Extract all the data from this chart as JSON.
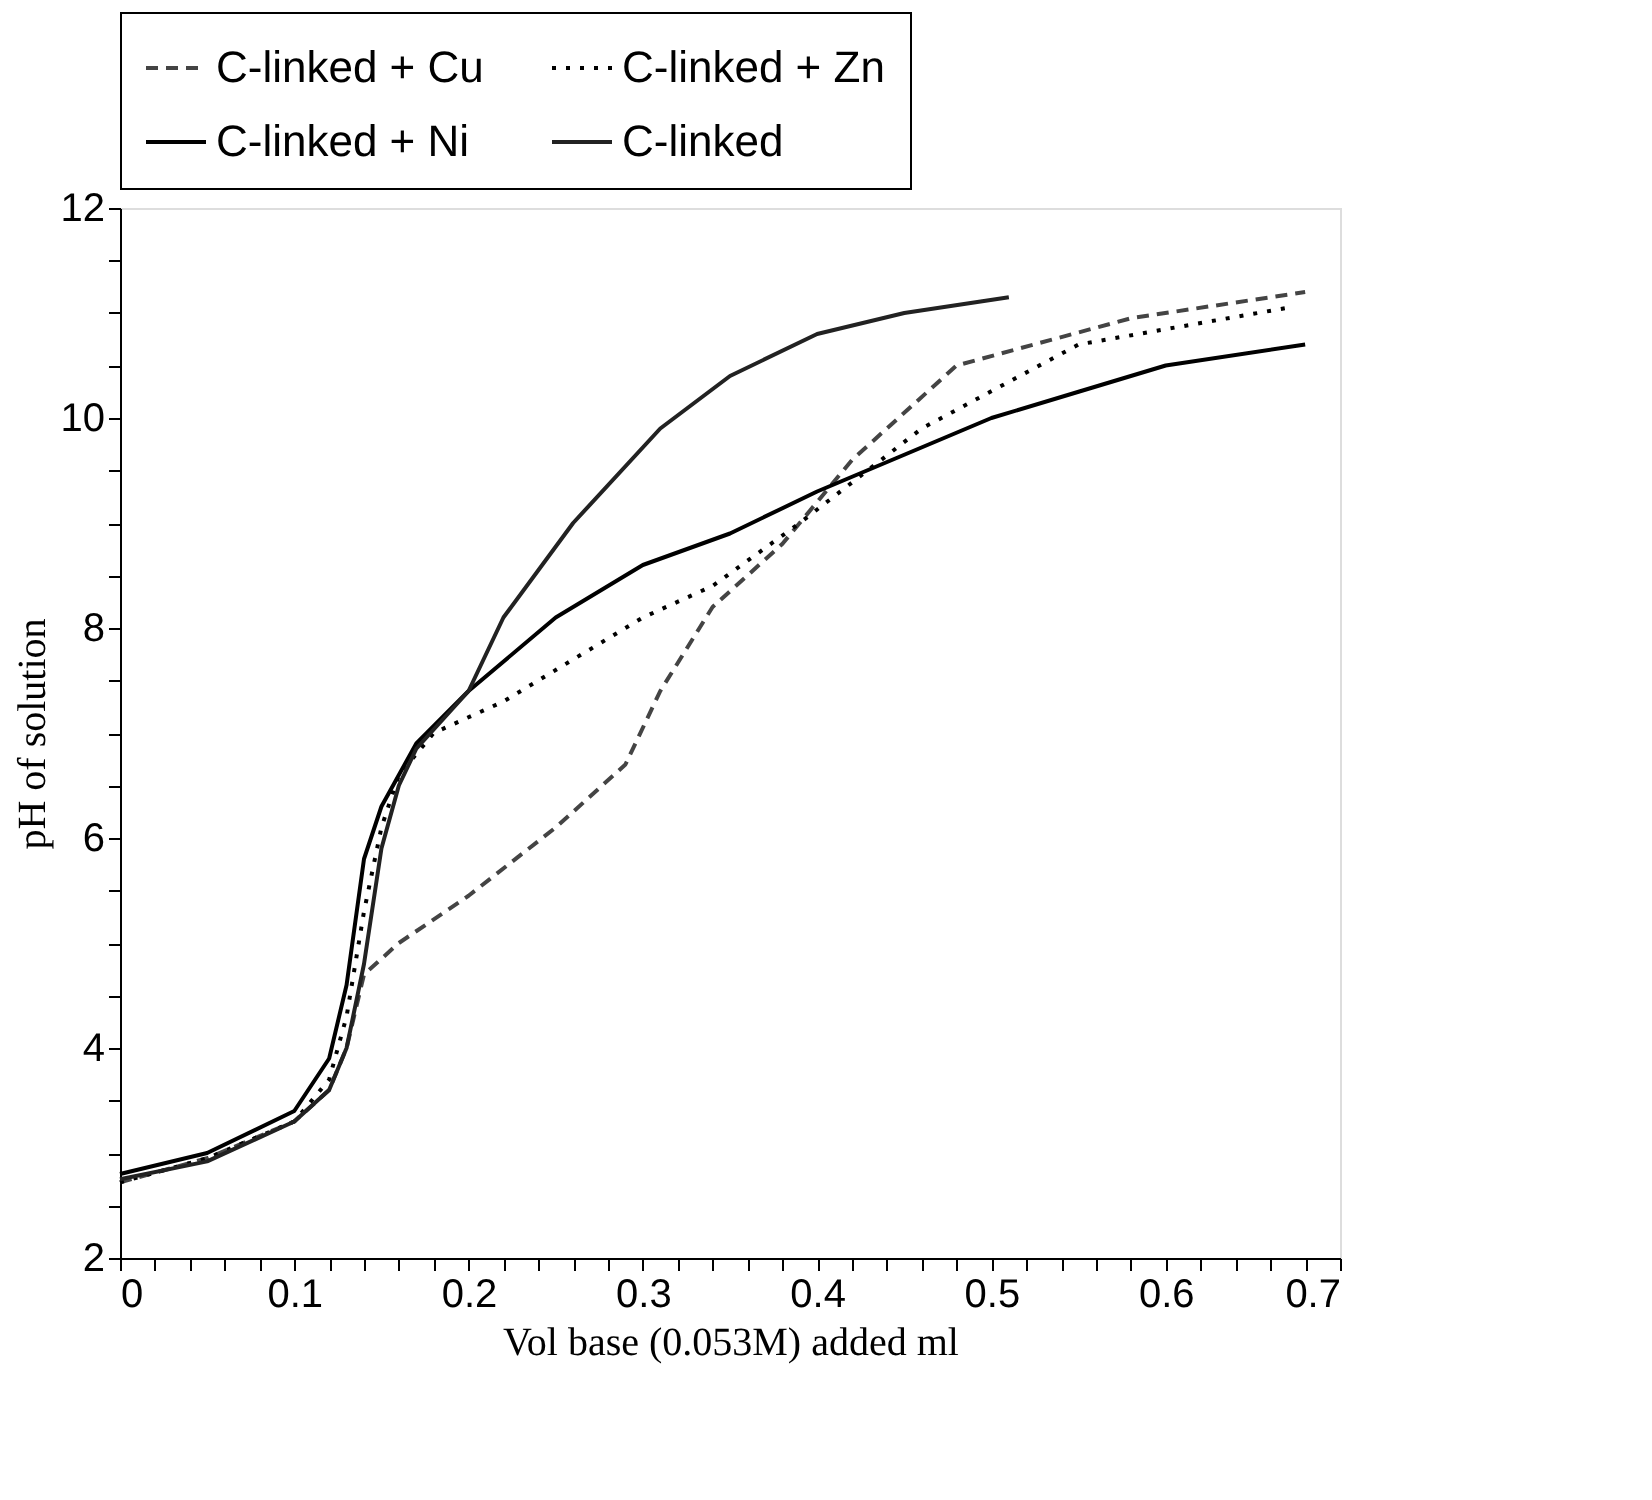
{
  "chart_data": {
    "type": "line",
    "xlabel": "Vol base (0.053M) added ml",
    "ylabel": "pH of solution",
    "xlim": [
      0,
      0.7
    ],
    "ylim": [
      2,
      12
    ],
    "xticks": [
      0,
      {
        "value": 0.02,
        "label": null
      },
      {
        "value": 0.04,
        "label": null
      },
      {
        "value": 0.06,
        "label": null
      },
      {
        "value": 0.08,
        "label": null
      },
      0.1,
      {
        "value": 0.12,
        "label": null
      },
      {
        "value": 0.14,
        "label": null
      },
      {
        "value": 0.16,
        "label": null
      },
      {
        "value": 0.18,
        "label": null
      },
      0.2,
      {
        "value": 0.22,
        "label": null
      },
      {
        "value": 0.24,
        "label": null
      },
      {
        "value": 0.26,
        "label": null
      },
      {
        "value": 0.28,
        "label": null
      },
      0.3,
      {
        "value": 0.32,
        "label": null
      },
      {
        "value": 0.34,
        "label": null
      },
      {
        "value": 0.36,
        "label": null
      },
      {
        "value": 0.38,
        "label": null
      },
      0.4,
      {
        "value": 0.42,
        "label": null
      },
      {
        "value": 0.44,
        "label": null
      },
      {
        "value": 0.46,
        "label": null
      },
      {
        "value": 0.48,
        "label": null
      },
      0.5,
      {
        "value": 0.52,
        "label": null
      },
      {
        "value": 0.54,
        "label": null
      },
      {
        "value": 0.56,
        "label": null
      },
      {
        "value": 0.58,
        "label": null
      },
      0.6,
      {
        "value": 0.62,
        "label": null
      },
      {
        "value": 0.64,
        "label": null
      },
      {
        "value": 0.66,
        "label": null
      },
      {
        "value": 0.68,
        "label": null
      },
      0.7
    ],
    "yticks": [
      2,
      {
        "value": 2.5,
        "label": null
      },
      {
        "value": 3,
        "label": null
      },
      {
        "value": 3.5,
        "label": null
      },
      4,
      {
        "value": 4.5,
        "label": null
      },
      {
        "value": 5,
        "label": null
      },
      {
        "value": 5.5,
        "label": null
      },
      6,
      {
        "value": 6.5,
        "label": null
      },
      {
        "value": 7,
        "label": null
      },
      {
        "value": 7.5,
        "label": null
      },
      8,
      {
        "value": 8.5,
        "label": null
      },
      {
        "value": 9,
        "label": null
      },
      {
        "value": 9.5,
        "label": null
      },
      10,
      {
        "value": 10.5,
        "label": null
      },
      {
        "value": 11,
        "label": null
      },
      {
        "value": 11.5,
        "label": null
      },
      12
    ],
    "grid": false,
    "legend": "top",
    "marker": "none",
    "series": [
      {
        "name": "C-linked + Cu",
        "color": "#444444",
        "line_style": "dashed",
        "x": [
          0,
          0.05,
          0.1,
          0.12,
          0.13,
          0.14,
          0.16,
          0.2,
          0.25,
          0.29,
          0.31,
          0.34,
          0.38,
          0.42,
          0.48,
          0.58,
          0.68
        ],
        "values": [
          2.72,
          2.95,
          3.3,
          3.6,
          4.0,
          4.7,
          5.0,
          5.45,
          6.1,
          6.7,
          7.4,
          8.2,
          8.8,
          9.6,
          10.5,
          10.95,
          11.2
        ]
      },
      {
        "name": "C-linked + Zn",
        "color": "#000000",
        "line_style": "dotted",
        "x": [
          0,
          0.05,
          0.1,
          0.12,
          0.13,
          0.14,
          0.15,
          0.16,
          0.18,
          0.22,
          0.25,
          0.3,
          0.34,
          0.39,
          0.46,
          0.55,
          0.67
        ],
        "values": [
          2.72,
          2.95,
          3.3,
          3.7,
          4.3,
          5.3,
          6.1,
          6.6,
          7.0,
          7.3,
          7.6,
          8.1,
          8.4,
          9.0,
          9.9,
          10.7,
          11.05
        ]
      },
      {
        "name": "C-linked + Ni",
        "color": "#000000",
        "line_style": "solid",
        "x": [
          0,
          0.05,
          0.1,
          0.12,
          0.13,
          0.14,
          0.15,
          0.17,
          0.2,
          0.25,
          0.3,
          0.35,
          0.4,
          0.45,
          0.5,
          0.55,
          0.6,
          0.68
        ],
        "values": [
          2.8,
          3.0,
          3.4,
          3.9,
          4.6,
          5.8,
          6.3,
          6.9,
          7.4,
          8.1,
          8.6,
          8.9,
          9.3,
          9.65,
          10.0,
          10.25,
          10.5,
          10.7
        ]
      },
      {
        "name": "C-linked",
        "color": "#222222",
        "line_style": "solid",
        "x": [
          0,
          0.05,
          0.1,
          0.12,
          0.13,
          0.14,
          0.15,
          0.16,
          0.17,
          0.2,
          0.22,
          0.26,
          0.31,
          0.35,
          0.4,
          0.45,
          0.51
        ],
        "values": [
          2.75,
          2.92,
          3.3,
          3.6,
          4.0,
          4.8,
          5.9,
          6.5,
          6.85,
          7.4,
          8.1,
          9.0,
          9.9,
          10.4,
          10.8,
          11.0,
          11.15
        ]
      }
    ]
  }
}
